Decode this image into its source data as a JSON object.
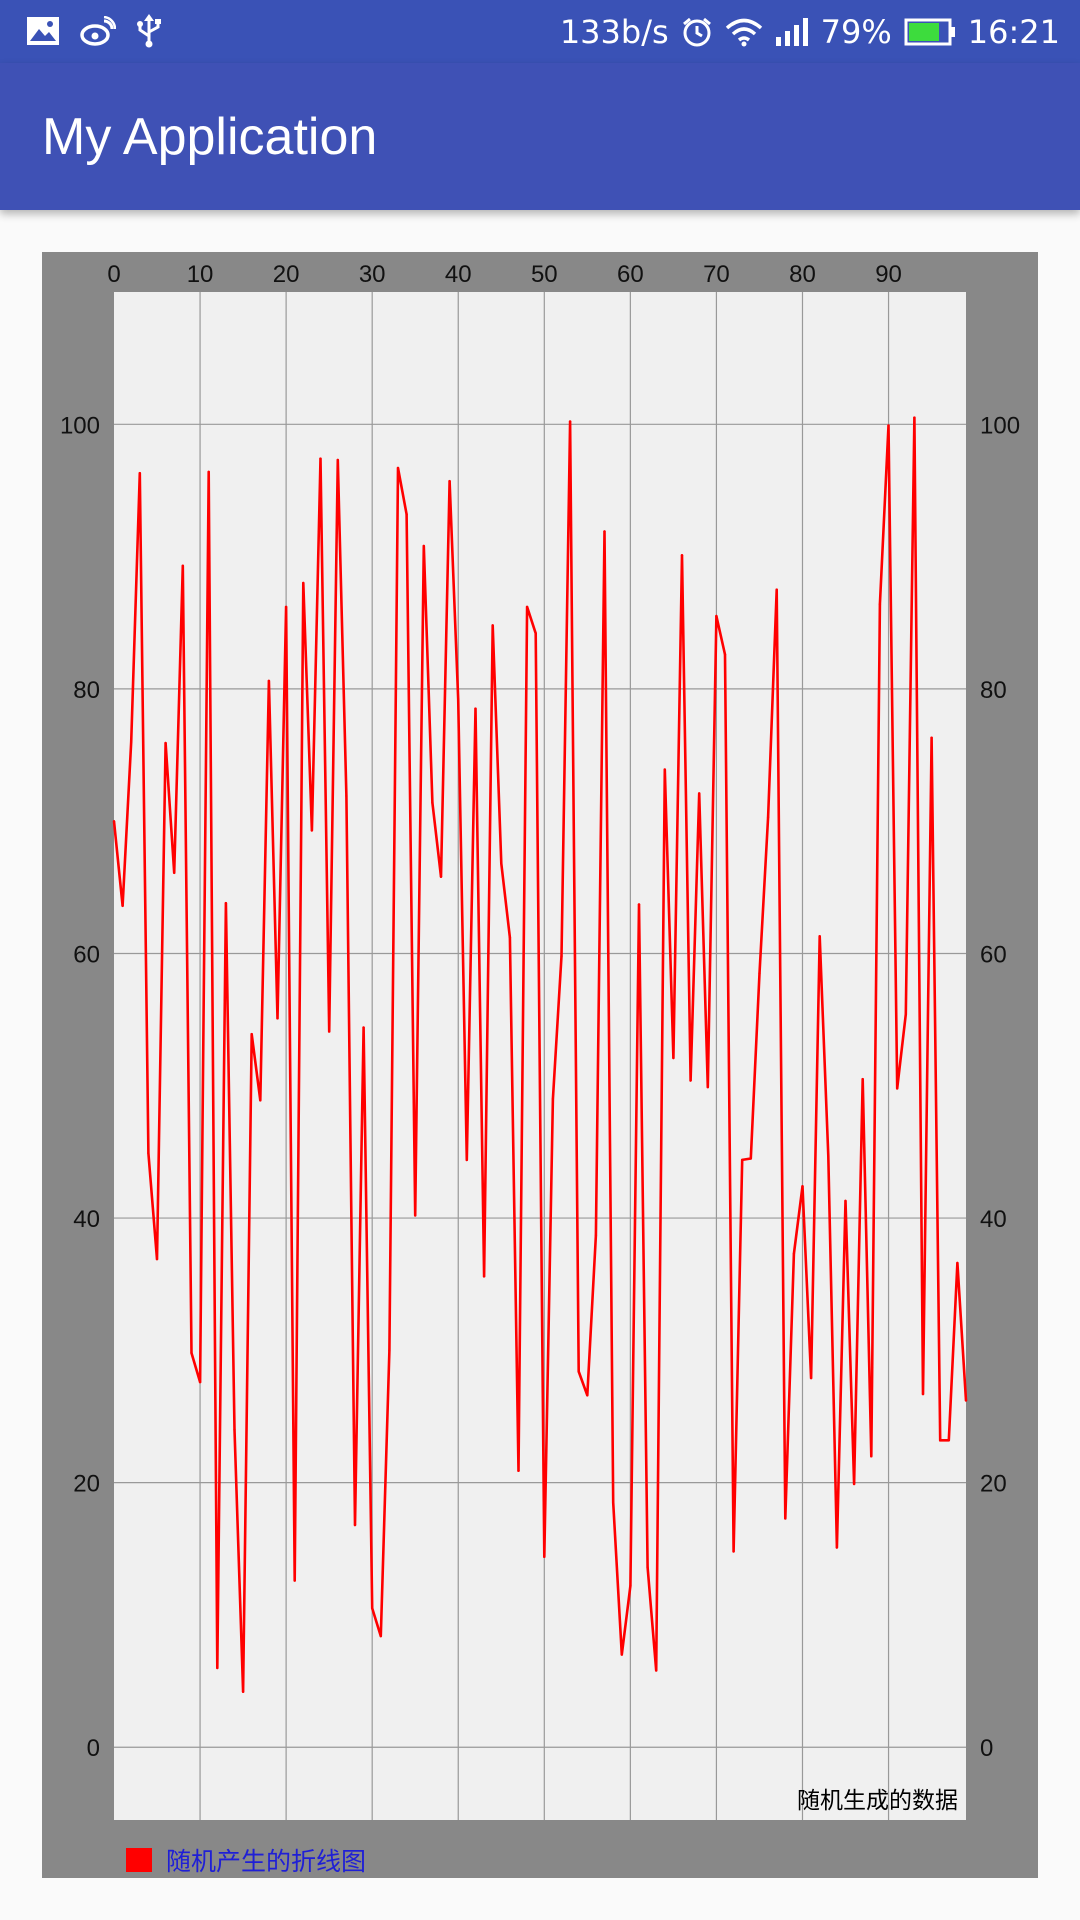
{
  "status_bar": {
    "net_speed": "133b/s",
    "battery_pct": "79%",
    "battery_level": 0.79,
    "time": "16:21",
    "icons_left": [
      "image-icon",
      "weibo-icon",
      "usb-icon"
    ],
    "icons_right": [
      "alarm-icon",
      "wifi-icon",
      "signal-icon",
      "battery-icon"
    ]
  },
  "app_bar": {
    "title": "My Application",
    "color": "#3f51b5"
  },
  "chart_data": {
    "type": "line",
    "x": [
      0,
      1,
      2,
      3,
      4,
      5,
      6,
      7,
      8,
      9,
      10,
      11,
      12,
      13,
      14,
      15,
      16,
      17,
      18,
      19,
      20,
      21,
      22,
      23,
      24,
      25,
      26,
      27,
      28,
      29,
      30,
      31,
      32,
      33,
      34,
      35,
      36,
      37,
      38,
      39,
      40,
      41,
      42,
      43,
      44,
      45,
      46,
      47,
      48,
      49,
      50,
      51,
      52,
      53,
      54,
      55,
      56,
      57,
      58,
      59,
      60,
      61,
      62,
      63,
      64,
      65,
      66,
      67,
      68,
      69,
      70,
      71,
      72,
      73,
      74,
      75,
      76,
      77,
      78,
      79,
      80,
      81,
      82,
      83,
      84,
      85,
      86,
      87,
      88,
      89,
      90,
      91,
      92,
      93,
      94,
      95,
      96,
      97,
      98,
      99
    ],
    "series": [
      {
        "name": "随机产生的折线图",
        "color": "#ff0000",
        "values": [
          70,
          63.6,
          76,
          96.3,
          44.9,
          36.9,
          75.9,
          66.1,
          89.3,
          29.8,
          27.6,
          96.4,
          6,
          63.8,
          24,
          4.2,
          53.9,
          48.9,
          80.6,
          55.1,
          86.2,
          12.6,
          88,
          69.3,
          97.4,
          54.1,
          97.3,
          71.9,
          16.8,
          54.4,
          10.5,
          8.4,
          30,
          96.7,
          93.2,
          40.2,
          90.8,
          71.4,
          65.8,
          95.7,
          79.2,
          44.4,
          78.5,
          35.6,
          84.8,
          66.8,
          61.2,
          20.9,
          86.2,
          84.2,
          14.4,
          49,
          59.8,
          100.2,
          28.4,
          26.6,
          38.7,
          91.9,
          18.5,
          7,
          12.2,
          63.7,
          13.6,
          5.8,
          73.9,
          52.1,
          90.1,
          50.4,
          72.1,
          49.9,
          85.5,
          82.6,
          14.8,
          44.4,
          44.5,
          58.5,
          70.3,
          87.5,
          17.3,
          37.3,
          42.4,
          27.9,
          61.3,
          44.7,
          15.1,
          41.3,
          19.9,
          50.5,
          22,
          86.4,
          99.9,
          49.8,
          55.4,
          100.5,
          26.7,
          76.3,
          23.2,
          23.2,
          36.6,
          26.2
        ]
      }
    ],
    "xlim": [
      0,
      99
    ],
    "ylim": [
      -5.5,
      110
    ],
    "x_ticks": [
      0,
      10,
      20,
      30,
      40,
      50,
      60,
      70,
      80,
      90
    ],
    "y_ticks": [
      0,
      20,
      40,
      60,
      80,
      100
    ],
    "x_tick_labels": [
      "0",
      "10",
      "20",
      "30",
      "40",
      "50",
      "60",
      "70",
      "80",
      "90"
    ],
    "y_tick_labels": [
      "0",
      "20",
      "40",
      "60",
      "80",
      "100"
    ],
    "x_axis_position": "top",
    "y_axis_position": "left and right",
    "grid": true,
    "annotation": "随机生成的数据",
    "legend": "bottom-left",
    "plot_background": "#f0f0f0",
    "margin_background": "#888888",
    "grid_color": "#999999",
    "legend_text_color": "#1f1fd6"
  }
}
